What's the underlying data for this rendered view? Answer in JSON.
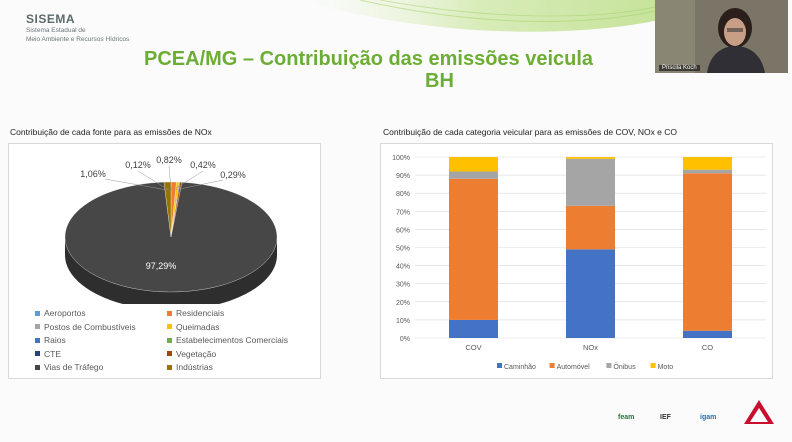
{
  "brand": {
    "name": "SISEMA",
    "sub1": "Sistema Estadual de",
    "sub2": "Meio Ambiente e Recursos Hídricos"
  },
  "title": {
    "line1": "PCEA/MG – Contribuição das emissões veicula",
    "line2": "BH"
  },
  "webcam": {
    "name": "Priscila Koch"
  },
  "footer_logos": [
    "feam",
    "IEF",
    "igam"
  ],
  "colors": {
    "title_green": "#6cae34",
    "pie_dark": "#474747",
    "blue": "#4472c4",
    "orange": "#ed7d31",
    "gray": "#a5a5a5",
    "yellow": "#ffc000"
  },
  "chart_data": [
    {
      "type": "pie",
      "title": "Contribuição de cada fonte para as emissões de NOx",
      "slices": [
        {
          "name": "Aeroportos",
          "value": 0.0,
          "color": "#5b9bd5"
        },
        {
          "name": "Residenciais",
          "value": 0.82,
          "color": "#ed7d31"
        },
        {
          "name": "Postos de Combustíveis",
          "value": 0.0,
          "color": "#a5a5a5"
        },
        {
          "name": "Queimadas",
          "value": 0.42,
          "color": "#ffc000"
        },
        {
          "name": "Raios",
          "value": 0.0,
          "color": "#4472c4"
        },
        {
          "name": "Estabelecimentos Comerciais",
          "value": 0.0,
          "color": "#70ad47"
        },
        {
          "name": "CTE",
          "value": 0.12,
          "color": "#264478"
        },
        {
          "name": "Vegetação",
          "value": 0.29,
          "color": "#9e480e"
        },
        {
          "name": "Vias de Tráfego",
          "value": 97.29,
          "color": "#474747"
        },
        {
          "name": "Indústrias",
          "value": 1.06,
          "color": "#997300"
        }
      ],
      "data_labels": [
        "0,12%",
        "0,82%",
        "0,42%",
        "1,06%",
        "0,29%",
        "97,29%"
      ]
    },
    {
      "type": "bar",
      "stacked": true,
      "title": "Contribuição de cada categoria veicular para as emissões de COV, NOx e CO",
      "categories": [
        "COV",
        "NOx",
        "CO"
      ],
      "ylim": [
        0,
        100
      ],
      "yticks": [
        "0%",
        "10%",
        "20%",
        "30%",
        "40%",
        "50%",
        "60%",
        "70%",
        "80%",
        "90%",
        "100%"
      ],
      "series": [
        {
          "name": "Caminhão",
          "color": "#4472c4",
          "values": [
            10,
            49,
            4
          ]
        },
        {
          "name": "Automóvel",
          "color": "#ed7d31",
          "values": [
            78,
            24,
            87
          ]
        },
        {
          "name": "Ônibus",
          "color": "#a5a5a5",
          "values": [
            4,
            26,
            2
          ]
        },
        {
          "name": "Moto",
          "color": "#ffc000",
          "values": [
            8,
            1,
            7
          ]
        }
      ],
      "grid": true,
      "legend_position": "bottom"
    }
  ]
}
